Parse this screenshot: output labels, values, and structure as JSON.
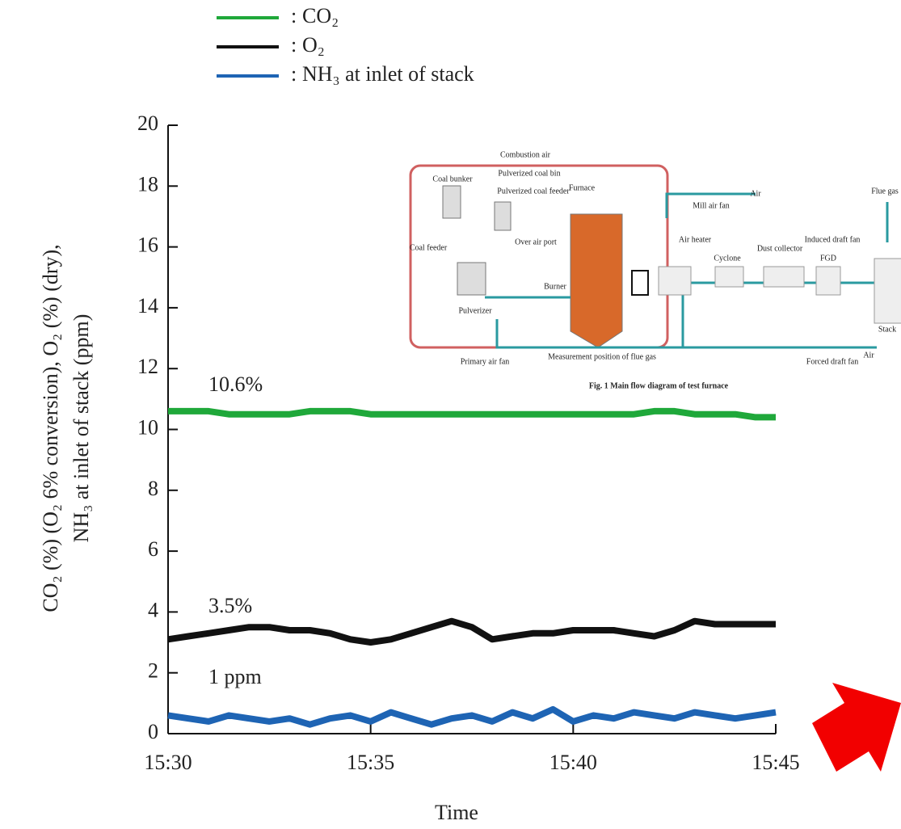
{
  "chart_data": {
    "type": "line",
    "x_label": "Time",
    "y_label": [
      "CO₂ (%) (O₂ 6% conversion), O₂ (%) (dry),",
      "NH₃ at inlet of stack (ppm)"
    ],
    "legend_separator": ":",
    "x": [
      30,
      30.5,
      31,
      31.5,
      32,
      32.5,
      33,
      33.5,
      34,
      34.5,
      35,
      35.5,
      36,
      36.5,
      37,
      37.5,
      38,
      38.5,
      39,
      39.5,
      40,
      40.5,
      41,
      41.5,
      42,
      42.5,
      43,
      43.5,
      44,
      44.5,
      45
    ],
    "xlim": [
      30,
      45
    ],
    "xticks": [
      {
        "value": 30,
        "label": "15:30"
      },
      {
        "value": 35,
        "label": "15:35"
      },
      {
        "value": 40,
        "label": "15:40"
      },
      {
        "value": 45,
        "label": "15:45"
      }
    ],
    "ylim": [
      0,
      20
    ],
    "yticks": [
      0,
      2,
      4,
      6,
      8,
      10,
      12,
      14,
      16,
      18,
      20
    ],
    "series": [
      {
        "name": "CO₂",
        "color": "#1fa83a",
        "values": [
          10.6,
          10.6,
          10.6,
          10.5,
          10.5,
          10.5,
          10.5,
          10.6,
          10.6,
          10.6,
          10.5,
          10.5,
          10.5,
          10.5,
          10.5,
          10.5,
          10.5,
          10.5,
          10.5,
          10.5,
          10.5,
          10.5,
          10.5,
          10.5,
          10.6,
          10.6,
          10.5,
          10.5,
          10.5,
          10.4,
          10.4
        ]
      },
      {
        "name": "O₂",
        "color": "#111111",
        "values": [
          3.1,
          3.2,
          3.3,
          3.4,
          3.5,
          3.5,
          3.4,
          3.4,
          3.3,
          3.1,
          3.0,
          3.1,
          3.3,
          3.5,
          3.7,
          3.5,
          3.1,
          3.2,
          3.3,
          3.3,
          3.4,
          3.4,
          3.4,
          3.3,
          3.2,
          3.4,
          3.7,
          3.6,
          3.6,
          3.6,
          3.6
        ]
      },
      {
        "name": "NH₃ at inlet of stack",
        "color": "#1e64b4",
        "values": [
          0.6,
          0.5,
          0.4,
          0.6,
          0.5,
          0.4,
          0.5,
          0.3,
          0.5,
          0.6,
          0.4,
          0.7,
          0.5,
          0.3,
          0.5,
          0.6,
          0.4,
          0.7,
          0.5,
          0.8,
          0.4,
          0.6,
          0.5,
          0.7,
          0.6,
          0.5,
          0.7,
          0.6,
          0.5,
          0.6,
          0.7
        ]
      }
    ],
    "annotations": [
      "10.6%",
      "3.5%",
      "1 ppm"
    ]
  },
  "inset": {
    "caption": "Fig. 1  Main flow diagram of test furnace",
    "labels": [
      "Combustion air",
      "Coal bunker",
      "Pulverized coal bin",
      "Pulverized coal feeder",
      "Furnace",
      "Coal feeder",
      "Over air port",
      "Burner",
      "Pulverizer",
      "Mill air fan",
      "Air",
      "Flue gas",
      "Air heater",
      "Cyclone",
      "Dust collector",
      "Induced draft fan",
      "FGD",
      "Measurement position of flue gas",
      "Stack",
      "Primary air fan",
      "Forced draft fan",
      "Air"
    ]
  }
}
